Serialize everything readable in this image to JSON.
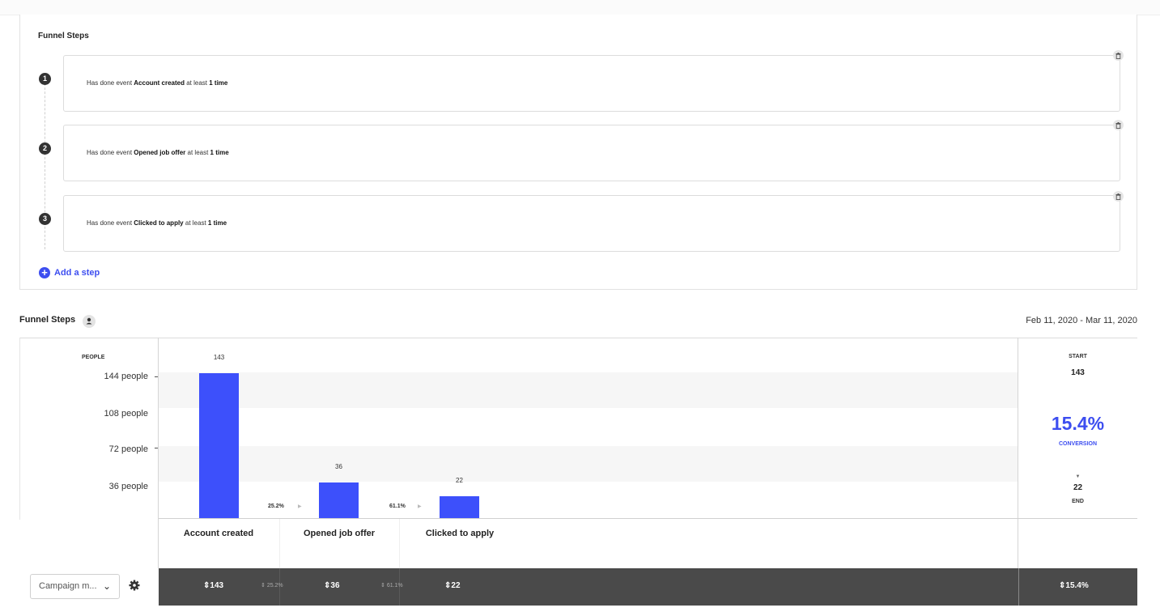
{
  "builder": {
    "title": "Funnel Steps",
    "steps": [
      {
        "number": "1",
        "prefix": "Has done event",
        "event": "Account created",
        "middle": "at least",
        "count": "1 time"
      },
      {
        "number": "2",
        "prefix": "Has done event",
        "event": "Opened job offer",
        "middle": "at least",
        "count": "1 time"
      },
      {
        "number": "3",
        "prefix": "Has done event",
        "event": "Clicked to apply",
        "middle": "at least",
        "count": "1 time"
      }
    ],
    "add_step_label": "Add a step"
  },
  "report": {
    "title": "Funnel Steps",
    "date_range": "Feb 11, 2020 - Mar 11, 2020",
    "summary": {
      "start_label": "START",
      "start_value": "143",
      "conversion_value": "15.4%",
      "conversion_label": "CONVERSION",
      "end_value": "22",
      "end_label": "END"
    }
  },
  "chart_data": {
    "type": "bar",
    "ylabel": "PEOPLE",
    "ytick_labels": [
      "144 people",
      "108 people",
      "72 people",
      "36 people"
    ],
    "ylim": [
      0,
      180
    ],
    "categories": [
      "Account created",
      "Opened job offer",
      "Clicked to apply"
    ],
    "values": [
      143,
      36,
      22
    ],
    "value_labels": [
      "143",
      "36",
      "22"
    ],
    "step_conversion_labels": [
      "25.2%",
      "61.1%"
    ]
  },
  "footer": {
    "breakdown_select": "Campaign m...",
    "values": [
      "143",
      "36",
      "22"
    ],
    "pcts": [
      "25.2%",
      "61.1%"
    ],
    "total_conversion": "15.4%"
  },
  "icons": {
    "trash": "trash-icon",
    "add": "plus-circle-icon",
    "user": "user-icon",
    "gear": "gear-icon",
    "chevron": "chevron-down-icon",
    "sort": "sort-arrows-icon"
  },
  "colors": {
    "accent": "#3d4ef0",
    "bar": "#3d50fb",
    "footer_bg": "#4a4a4a"
  }
}
